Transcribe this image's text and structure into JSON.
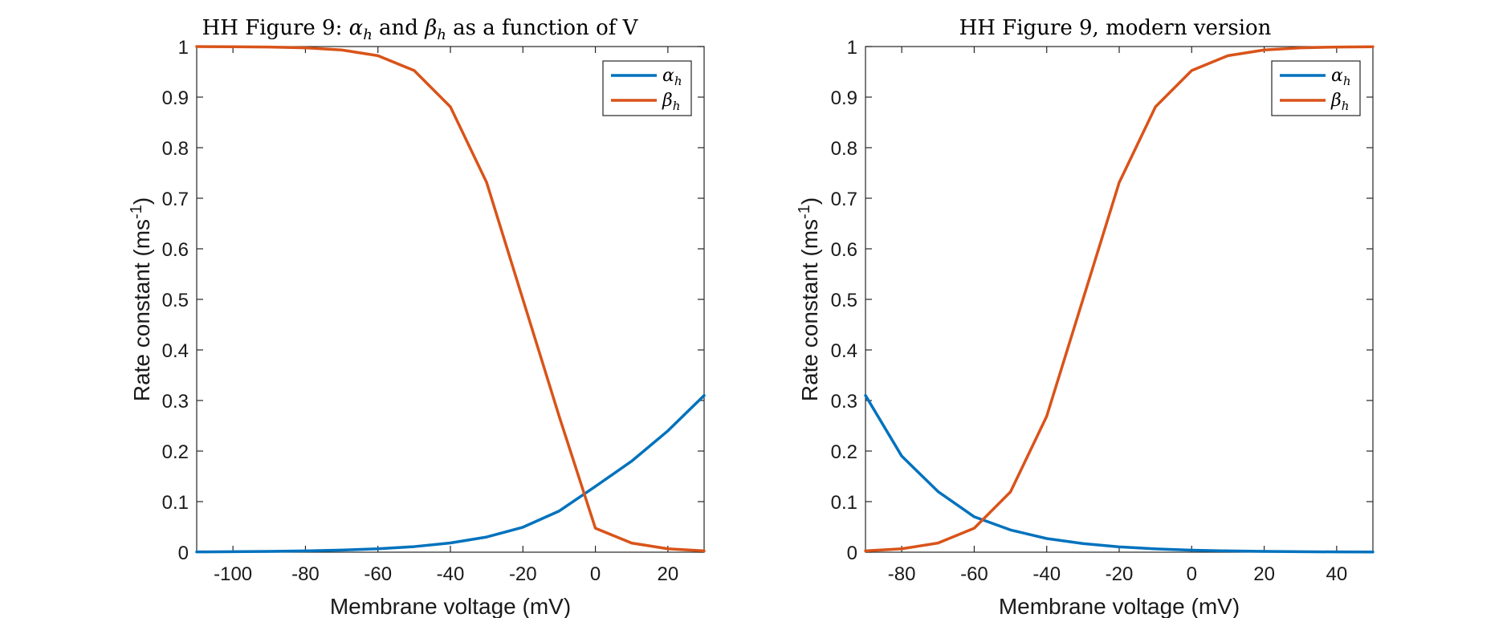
{
  "chart_data": [
    {
      "type": "line",
      "title_prefix": "HH Figure 9: ",
      "title_a_sym": "α",
      "title_a_sub": "h",
      "title_mid": " and ",
      "title_b_sym": "β",
      "title_b_sub": "h",
      "title_suffix": " as a function of V",
      "xlabel": "Membrane voltage (mV)",
      "ylabel_main": "Rate constant (ms",
      "ylabel_sup": "-1",
      "ylabel_close": ")",
      "xlim": [
        -110,
        30
      ],
      "ylim": [
        0,
        1
      ],
      "xticks": [
        -100,
        -80,
        -60,
        -40,
        -20,
        0,
        20
      ],
      "yticks": [
        0,
        0.1,
        0.2,
        0.3,
        0.4,
        0.5,
        0.6,
        0.7,
        0.8,
        0.9,
        1
      ],
      "legend_position": "top-right",
      "series": [
        {
          "name_sym": "α",
          "name_sub": "h",
          "color": "#0072BD",
          "x": [
            -110,
            -100,
            -90,
            -80,
            -70,
            -60,
            -50,
            -40,
            -30,
            -20,
            -10,
            0,
            10,
            20,
            30
          ],
          "y": [
            0.0005,
            0.0009,
            0.0015,
            0.0025,
            0.0041,
            0.0067,
            0.011,
            0.0182,
            0.03,
            0.0494,
            0.0814,
            0.13,
            0.18,
            0.24,
            0.31
          ]
        },
        {
          "name_sym": "β",
          "name_sub": "h",
          "color": "#D95319",
          "x": [
            -110,
            -100,
            -90,
            -80,
            -70,
            -60,
            -50,
            -40,
            -30,
            -20,
            -10,
            0,
            10,
            20,
            30
          ],
          "y": [
            0.9999,
            0.9997,
            0.9991,
            0.9975,
            0.9933,
            0.982,
            0.9526,
            0.8808,
            0.7311,
            0.5,
            0.2689,
            0.0474,
            0.018,
            0.0067,
            0.0025
          ]
        }
      ]
    },
    {
      "type": "line",
      "title_prefix": "HH Figure 9, modern version",
      "title_a_sym": "",
      "title_a_sub": "",
      "title_mid": "",
      "title_b_sym": "",
      "title_b_sub": "",
      "title_suffix": "",
      "xlabel": "Membrane voltage (mV)",
      "ylabel_main": "Rate constant (ms",
      "ylabel_sup": "-1",
      "ylabel_close": ")",
      "xlim": [
        -90,
        50
      ],
      "ylim": [
        0,
        1
      ],
      "xticks": [
        -80,
        -60,
        -40,
        -20,
        0,
        20,
        40
      ],
      "yticks": [
        0,
        0.1,
        0.2,
        0.3,
        0.4,
        0.5,
        0.6,
        0.7,
        0.8,
        0.9,
        1
      ],
      "legend_position": "top-right",
      "series": [
        {
          "name_sym": "α",
          "name_sub": "h",
          "color": "#0072BD",
          "x": [
            -90,
            -80,
            -70,
            -60,
            -50,
            -40,
            -30,
            -20,
            -10,
            0,
            10,
            20,
            30,
            40,
            50
          ],
          "y": [
            0.31,
            0.19,
            0.12,
            0.07,
            0.044,
            0.027,
            0.017,
            0.0105,
            0.0065,
            0.004,
            0.0025,
            0.0015,
            0.0009,
            0.0006,
            0.0004
          ]
        },
        {
          "name_sym": "β",
          "name_sub": "h",
          "color": "#D95319",
          "x": [
            -90,
            -80,
            -70,
            -60,
            -50,
            -40,
            -30,
            -20,
            -10,
            0,
            10,
            20,
            30,
            40,
            50
          ],
          "y": [
            0.0025,
            0.0067,
            0.018,
            0.0474,
            0.1192,
            0.2689,
            0.5,
            0.7311,
            0.8808,
            0.9526,
            0.982,
            0.9933,
            0.9975,
            0.9991,
            0.9997
          ]
        }
      ]
    }
  ]
}
